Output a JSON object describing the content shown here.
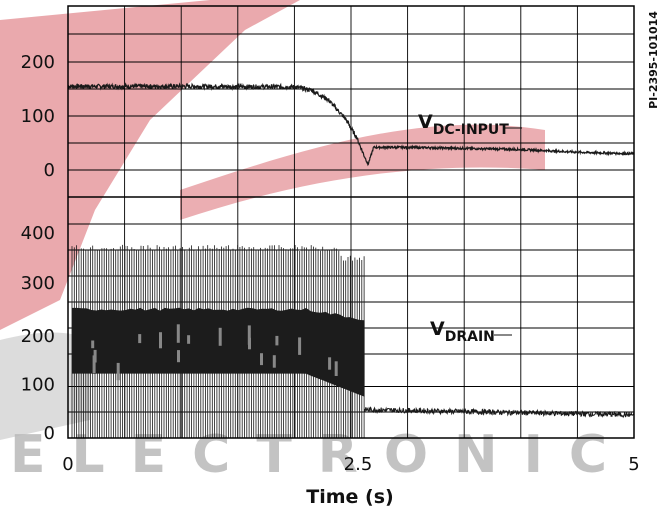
{
  "chart_data": {
    "type": "line",
    "x_axis": {
      "label": "Time (s)",
      "ticks": [
        "0",
        "2.5",
        "5"
      ],
      "range": [
        0,
        5
      ]
    },
    "side_label": "PI-2395-101014",
    "watermark": "ELECTRONIC",
    "colors": {
      "trace": "#1a1a1a",
      "grid": "#000000",
      "watermark_red": "#e8a0a4",
      "watermark_gray": "#b9b9b9"
    },
    "grid": true,
    "panels": [
      {
        "name": "upper",
        "y_ticks": [
          "200",
          "100",
          "0"
        ],
        "series": [
          {
            "label_main": "V",
            "label_sub": "DC-INPUT",
            "x": [
              0,
              1.0,
              2.0,
              2.15,
              2.3,
              2.45,
              2.55,
              2.62,
              2.65,
              2.7,
              3.0,
              3.5,
              4.0,
              4.5,
              5.0
            ],
            "y": [
              155,
              155,
              154,
              148,
              130,
              95,
              60,
              25,
              10,
              42,
              42,
              40,
              38,
              33,
              30
            ]
          }
        ]
      },
      {
        "name": "lower",
        "y_ticks": [
          "400",
          "300",
          "200",
          "100",
          "0"
        ],
        "series": [
          {
            "label_main": "V",
            "label_sub": "DRAIN",
            "segments": [
              {
                "x_range": [
                  0,
                  2.4
                ],
                "peak": 375,
                "band_high": 250,
                "band_low": 125
              },
              {
                "x_range": [
                  2.4,
                  2.62
                ],
                "peak": 355,
                "band_high": 230,
                "band_low": 80
              },
              {
                "x_range": [
                  2.62,
                  5.0
                ],
                "level_start": 55,
                "level_end": 45
              }
            ]
          }
        ]
      }
    ]
  }
}
